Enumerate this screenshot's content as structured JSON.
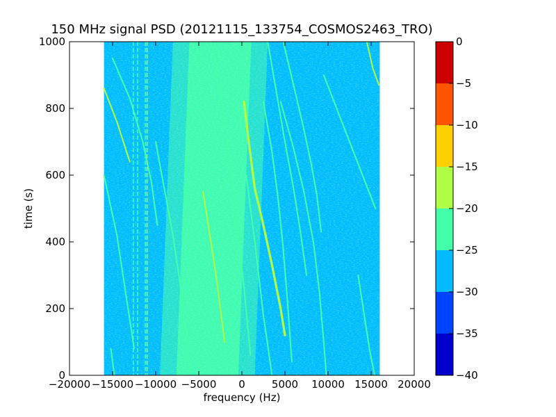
{
  "chart_data": {
    "type": "heatmap",
    "title": "150 MHz signal PSD (20121115_133754_COSMOS2463_TRO)",
    "xlabel": "frequency (Hz)",
    "ylabel": "time (s)",
    "xlim": [
      -20000,
      20000
    ],
    "ylim": [
      0,
      1000
    ],
    "data_extent_x": [
      -16000,
      16000
    ],
    "xticks": [
      -20000,
      -15000,
      -10000,
      -5000,
      0,
      5000,
      10000,
      15000,
      20000
    ],
    "xtick_labels": [
      "−20000",
      "−15000",
      "−10000",
      "−5000",
      "0",
      "5000",
      "10000",
      "15000",
      "20000"
    ],
    "yticks": [
      0,
      200,
      400,
      600,
      800,
      1000
    ],
    "ytick_labels": [
      "0",
      "200",
      "400",
      "600",
      "800",
      "1000"
    ],
    "colorbar": {
      "levels": [
        -40,
        -35,
        -30,
        -25,
        -20,
        -15,
        -10,
        -5,
        0
      ],
      "tick_labels": [
        "−40",
        "−35",
        "−30",
        "−25",
        "−20",
        "−15",
        "−10",
        "−5",
        "0"
      ],
      "colors": [
        "#0000cc",
        "#0044ff",
        "#00bbff",
        "#44ffaa",
        "#b0ff44",
        "#ffd000",
        "#ff5500",
        "#cc0000"
      ]
    },
    "background_level": -27.5,
    "noise_band_center_hz_at_t0": -4000,
    "noise_band_center_hz_at_t1000": -2500,
    "noise_band_level": -22.5,
    "traces": [
      {
        "points": [
          [
            250,
            820
          ],
          [
            800,
            700
          ],
          [
            1500,
            560
          ],
          [
            2500,
            450
          ],
          [
            3500,
            330
          ],
          [
            4500,
            200
          ],
          [
            5000,
            120
          ]
        ],
        "level": -17.5,
        "type": "main-signal"
      },
      {
        "points": [
          [
            -16000,
            860
          ],
          [
            -14500,
            760
          ],
          [
            -13000,
            640
          ]
        ],
        "level": -17.5
      },
      {
        "points": [
          [
            -15000,
            950
          ],
          [
            -13000,
            830
          ],
          [
            -11500,
            700
          ],
          [
            -10500,
            580
          ],
          [
            -9800,
            450
          ]
        ],
        "level": -22.5
      },
      {
        "points": [
          [
            -16000,
            600
          ],
          [
            -14500,
            420
          ],
          [
            -13500,
            250
          ],
          [
            -12500,
            80
          ]
        ],
        "level": -22.5
      },
      {
        "points": [
          [
            -10000,
            700
          ],
          [
            -9000,
            560
          ],
          [
            -8000,
            420
          ],
          [
            -7200,
            280
          ],
          [
            -6500,
            130
          ],
          [
            -6000,
            0
          ]
        ],
        "level": -22.5
      },
      {
        "points": [
          [
            -3500,
            1000
          ],
          [
            -2500,
            850
          ],
          [
            -1500,
            650
          ],
          [
            -500,
            450
          ],
          [
            300,
            250
          ],
          [
            1000,
            60
          ]
        ],
        "level": -22.5
      },
      {
        "points": [
          [
            -4500,
            550
          ],
          [
            -3000,
            300
          ],
          [
            -2000,
            100
          ]
        ],
        "level": -20
      },
      {
        "points": [
          [
            500,
            600
          ],
          [
            1500,
            400
          ],
          [
            2500,
            180
          ],
          [
            3500,
            0
          ]
        ],
        "level": -22.5
      },
      {
        "points": [
          [
            3000,
            1000
          ],
          [
            4000,
            850
          ],
          [
            5000,
            700
          ],
          [
            6000,
            560
          ],
          [
            6800,
            430
          ],
          [
            7500,
            300
          ]
        ],
        "level": -22.5
      },
      {
        "points": [
          [
            4800,
            1000
          ],
          [
            6000,
            870
          ],
          [
            7000,
            760
          ],
          [
            8000,
            640
          ],
          [
            8700,
            540
          ],
          [
            9200,
            430
          ]
        ],
        "level": -22.5
      },
      {
        "points": [
          [
            2500,
            820
          ],
          [
            3500,
            670
          ],
          [
            4200,
            530
          ],
          [
            4800,
            380
          ],
          [
            5300,
            220
          ],
          [
            5800,
            40
          ]
        ],
        "level": -22.5
      },
      {
        "points": [
          [
            4500,
            820
          ],
          [
            6000,
            680
          ],
          [
            7200,
            550
          ],
          [
            8300,
            400
          ],
          [
            9000,
            250
          ],
          [
            9500,
            100
          ],
          [
            9800,
            0
          ]
        ],
        "level": -22.5
      },
      {
        "points": [
          [
            9500,
            900
          ],
          [
            11000,
            800
          ],
          [
            12500,
            700
          ],
          [
            14000,
            600
          ],
          [
            15500,
            500
          ]
        ],
        "level": -22.5
      },
      {
        "points": [
          [
            14500,
            1000
          ],
          [
            15200,
            920
          ],
          [
            15900,
            870
          ]
        ],
        "level": -20
      },
      {
        "points": [
          [
            13500,
            300
          ],
          [
            14200,
            180
          ],
          [
            14800,
            80
          ],
          [
            15400,
            0
          ]
        ],
        "level": -22.5
      },
      {
        "points": [
          [
            -15200,
            80
          ],
          [
            -14800,
            0
          ]
        ],
        "level": -22.5
      }
    ],
    "vertical_lines_hz": [
      {
        "x": -12600,
        "level": -22.5
      },
      {
        "x": -12100,
        "level": -22.5
      },
      {
        "x": -11200,
        "level": -22.5
      },
      {
        "x": -11000,
        "level": -20
      }
    ]
  }
}
